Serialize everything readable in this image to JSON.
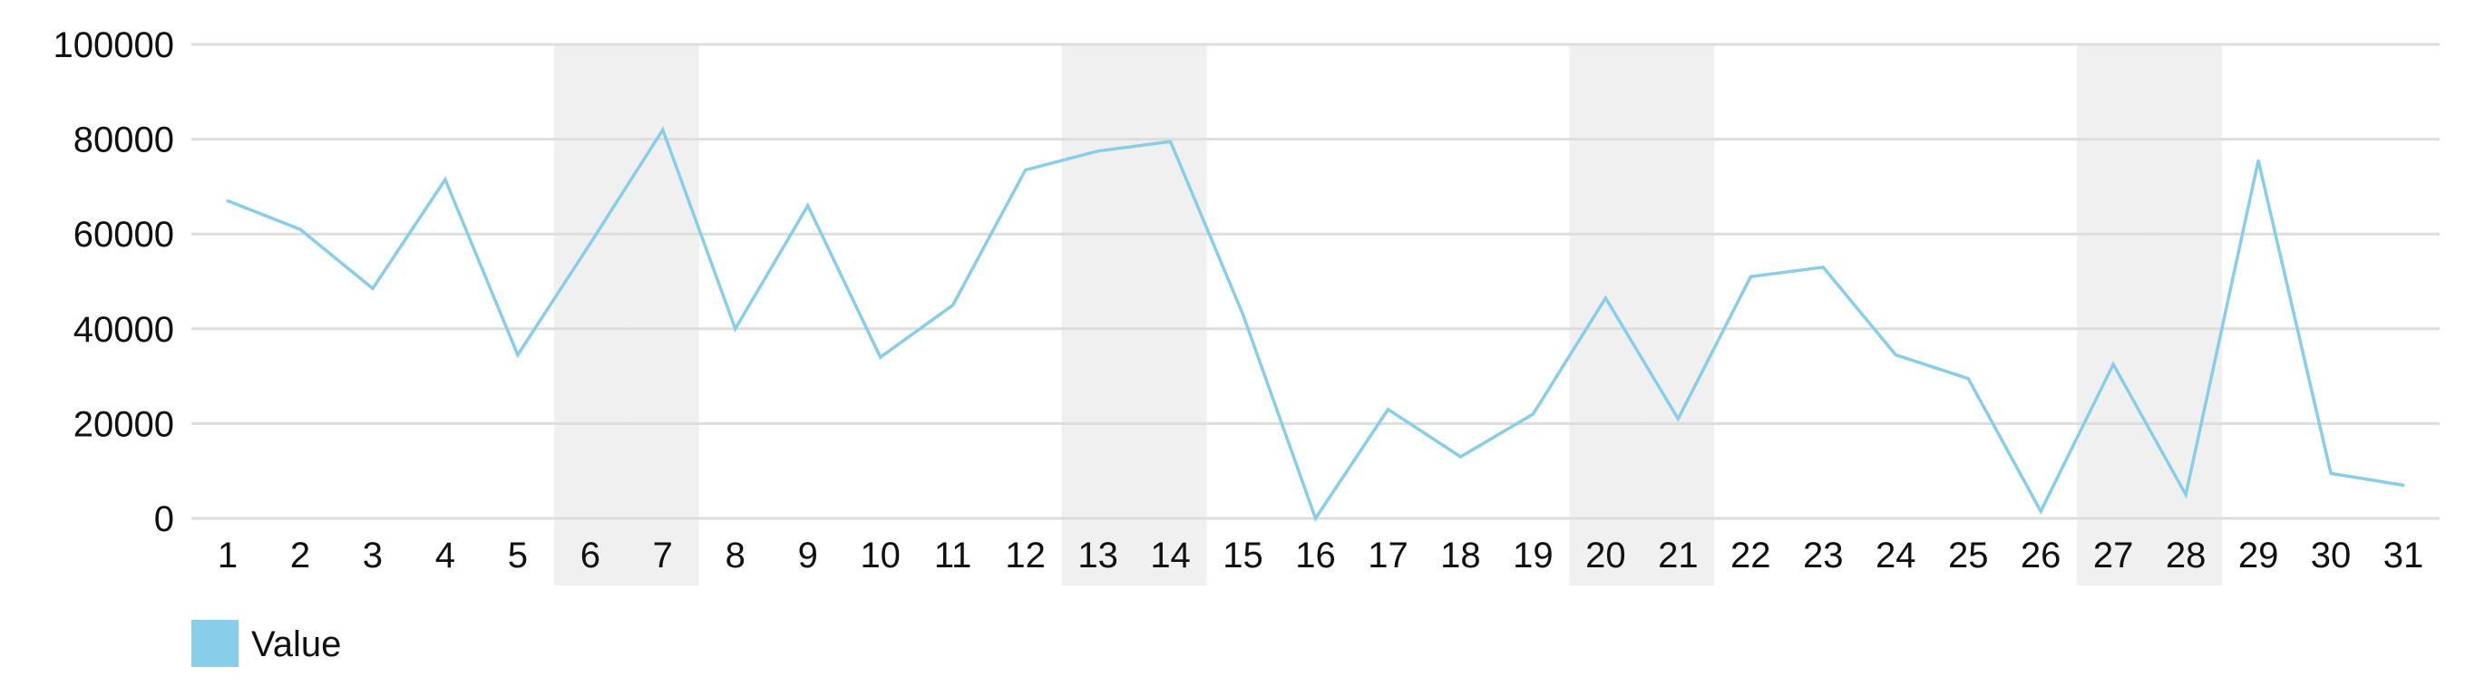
{
  "chart_data": {
    "type": "line",
    "categories": [
      "1",
      "2",
      "3",
      "4",
      "5",
      "6",
      "7",
      "8",
      "9",
      "10",
      "11",
      "12",
      "13",
      "14",
      "15",
      "16",
      "17",
      "18",
      "19",
      "20",
      "21",
      "22",
      "23",
      "24",
      "25",
      "26",
      "27",
      "28",
      "29",
      "30",
      "31"
    ],
    "series": [
      {
        "name": "Value",
        "color": "#87ceeb",
        "values": [
          67000,
          61000,
          48500,
          71500,
          34500,
          58000,
          82000,
          40000,
          66000,
          34000,
          45000,
          73500,
          77500,
          79500,
          43000,
          0,
          23000,
          13000,
          22000,
          46500,
          21000,
          51000,
          53000,
          34500,
          29500,
          1500,
          32500,
          5000,
          75500,
          9500,
          7000
        ]
      }
    ],
    "ylim": [
      0,
      100000
    ],
    "yticks": [
      "0",
      "20000",
      "40000",
      "60000",
      "80000",
      "100000"
    ],
    "grid": true,
    "shaded_categories": [
      "6",
      "7",
      "13",
      "14",
      "20",
      "21",
      "27",
      "28"
    ],
    "shade_color": "#f0f0f0",
    "grid_color": "#dddddd",
    "legend_position": "bottom-left",
    "title": "",
    "xlabel": "",
    "ylabel": ""
  }
}
